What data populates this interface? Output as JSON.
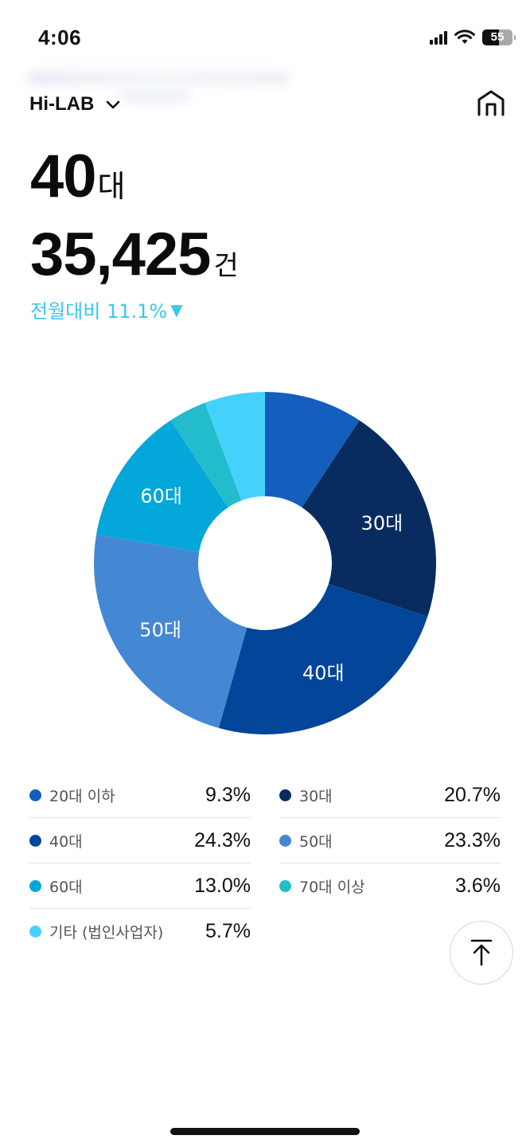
{
  "status_bar": {
    "time": "4:06",
    "battery": "55",
    "icons": [
      "signal-icon",
      "wifi-icon",
      "battery-icon"
    ]
  },
  "header": {
    "title": "Hi-LAB",
    "dropdown_icon": "chevron-down-icon",
    "home_icon": "home-icon"
  },
  "summary": {
    "age_number": "40",
    "age_unit": "대",
    "count_number": "35,425",
    "count_unit": "건",
    "mom_label": "전월대비 11.1%",
    "mom_direction": "down",
    "mom_symbol": "▼",
    "mom_color": "#3cc8ea"
  },
  "chart_data": {
    "type": "pie",
    "donut": true,
    "segments": [
      {
        "label": "20대 이하",
        "value": 9.3,
        "color": "#155ebd",
        "slice_label": ""
      },
      {
        "label": "30대",
        "value": 20.7,
        "color": "#082c5f",
        "slice_label": "30대"
      },
      {
        "label": "40대",
        "value": 24.3,
        "color": "#034599",
        "slice_label": "40대"
      },
      {
        "label": "50대",
        "value": 23.3,
        "color": "#4488d4",
        "slice_label": "50대"
      },
      {
        "label": "60대",
        "value": 13.0,
        "color": "#04a7d9",
        "slice_label": "60대"
      },
      {
        "label": "70대 이상",
        "value": 3.6,
        "color": "#22bccd",
        "slice_label": ""
      },
      {
        "label": "기타 (법인사업자)",
        "value": 5.7,
        "color": "#45d2fa",
        "slice_label": ""
      }
    ]
  },
  "legend": [
    {
      "label": "20대 이하",
      "value": "9.3%",
      "color": "#155ebd"
    },
    {
      "label": "30대",
      "value": "20.7%",
      "color": "#082c5f"
    },
    {
      "label": "40대",
      "value": "24.3%",
      "color": "#034599"
    },
    {
      "label": "50대",
      "value": "23.3%",
      "color": "#4488d4"
    },
    {
      "label": "60대",
      "value": "13.0%",
      "color": "#04a7d9"
    },
    {
      "label": "70대 이상",
      "value": "3.6%",
      "color": "#22bccd"
    },
    {
      "label": "기타 (법인사업자)",
      "value": "5.7%",
      "color": "#45d2fa"
    }
  ],
  "scroll_top_icon": "arrow-up-icon"
}
